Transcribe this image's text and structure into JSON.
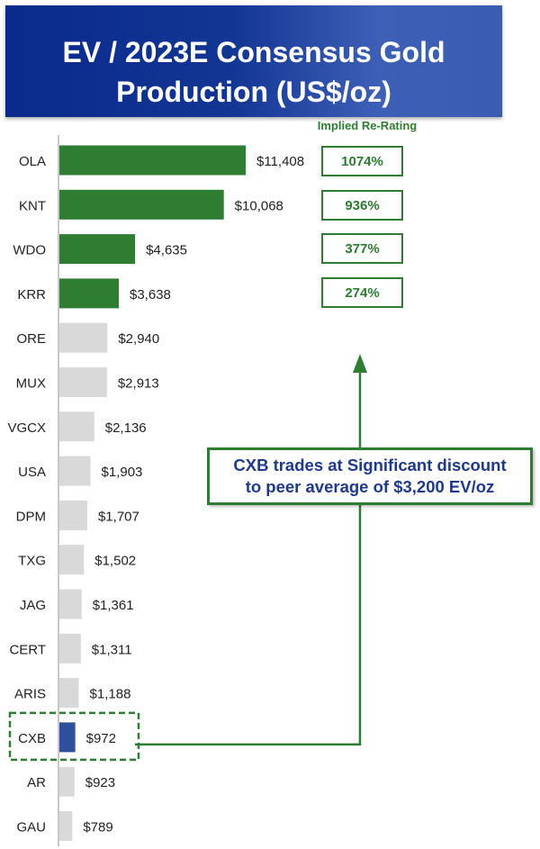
{
  "title": "EV / 2023E Consensus Gold Production (US$/oz)",
  "rerating": {
    "header": "Implied Re-Rating",
    "items": [
      {
        "ticker": "OLA",
        "value": "1074%"
      },
      {
        "ticker": "KNT",
        "value": "936%"
      },
      {
        "ticker": "WDO",
        "value": "377%"
      },
      {
        "ticker": "KRR",
        "value": "274%"
      }
    ]
  },
  "callout": {
    "line1": "CXB trades at Significant discount",
    "line2": "to peer average of $3,200 EV/oz"
  },
  "colors": {
    "banner": "#0a2a8c",
    "green": "#2e7d32",
    "grey": "#d9d9d9",
    "highlight": "#2f4f9a"
  },
  "chart_data": {
    "type": "bar",
    "orientation": "horizontal",
    "categories": [
      "OLA",
      "KNT",
      "WDO",
      "KRR",
      "ORE",
      "MUX",
      "VGCX",
      "USA",
      "DPM",
      "TXG",
      "JAG",
      "CERT",
      "ARIS",
      "CXB",
      "AR",
      "GAU"
    ],
    "values": [
      11408,
      10068,
      4635,
      3638,
      2940,
      2913,
      2136,
      1903,
      1707,
      1502,
      1361,
      1311,
      1188,
      972,
      923,
      789
    ],
    "value_labels": [
      "$11,408",
      "$10,068",
      "$4,635",
      "$3,638",
      "$2,940",
      "$2,913",
      "$2,136",
      "$1,903",
      "$1,707",
      "$1,502",
      "$1,361",
      "$1,311",
      "$1,188",
      "$972",
      "$923",
      "$789"
    ],
    "bar_colors": [
      "green",
      "green",
      "green",
      "green",
      "grey",
      "grey",
      "grey",
      "grey",
      "grey",
      "grey",
      "grey",
      "grey",
      "grey",
      "highlight",
      "grey",
      "grey"
    ],
    "highlighted": "CXB",
    "xlabel": "",
    "ylabel": "",
    "xlim": [
      0,
      11408
    ],
    "grid": false,
    "legend": "none"
  }
}
